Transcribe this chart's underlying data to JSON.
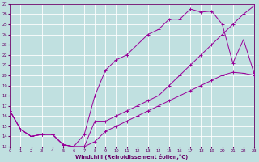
{
  "bg_color": "#c0e0e0",
  "grid_color": "#b0d8d8",
  "line_color": "#990099",
  "spine_color": "#660066",
  "xlabel": "Windchill (Refroidissement éolien,°C)",
  "xlim": [
    0,
    23
  ],
  "ylim": [
    13,
    27
  ],
  "xticks": [
    0,
    1,
    2,
    3,
    4,
    5,
    6,
    7,
    8,
    9,
    10,
    11,
    12,
    13,
    14,
    15,
    16,
    17,
    18,
    19,
    20,
    21,
    22,
    23
  ],
  "yticks": [
    13,
    14,
    15,
    16,
    17,
    18,
    19,
    20,
    21,
    22,
    23,
    24,
    25,
    26,
    27
  ],
  "line1_x": [
    0,
    1,
    2,
    3,
    4,
    5,
    6,
    7,
    8,
    9,
    10,
    11,
    12,
    13,
    14,
    15,
    16,
    17,
    18,
    19,
    20,
    21,
    22,
    23
  ],
  "line1_y": [
    16.5,
    14.7,
    14.0,
    14.2,
    14.2,
    13.2,
    13.0,
    13.0,
    13.5,
    14.5,
    15.0,
    15.5,
    16.0,
    16.5,
    17.0,
    17.5,
    18.0,
    18.5,
    19.0,
    19.5,
    20.0,
    20.3,
    20.2,
    20.0
  ],
  "line2_x": [
    0,
    1,
    2,
    3,
    4,
    5,
    6,
    7,
    8,
    9,
    10,
    11,
    12,
    13,
    14,
    15,
    16,
    17,
    18,
    19,
    20,
    21,
    22,
    23
  ],
  "line2_y": [
    16.5,
    14.7,
    14.0,
    14.2,
    14.2,
    13.2,
    13.0,
    14.2,
    18.0,
    20.5,
    21.5,
    22.0,
    23.0,
    24.0,
    24.5,
    25.5,
    25.5,
    26.5,
    26.2,
    26.3,
    25.0,
    21.2,
    23.5,
    20.2
  ],
  "line3_x": [
    0,
    1,
    2,
    3,
    4,
    5,
    6,
    7,
    8,
    9,
    10,
    11,
    12,
    13,
    14,
    15,
    16,
    17,
    18,
    19,
    20,
    21,
    22,
    23
  ],
  "line3_y": [
    16.5,
    14.7,
    14.0,
    14.2,
    14.2,
    13.2,
    13.0,
    13.0,
    15.5,
    15.5,
    16.0,
    16.5,
    17.0,
    17.5,
    18.0,
    19.0,
    20.0,
    21.0,
    22.0,
    23.0,
    24.0,
    25.0,
    26.0,
    26.8
  ]
}
